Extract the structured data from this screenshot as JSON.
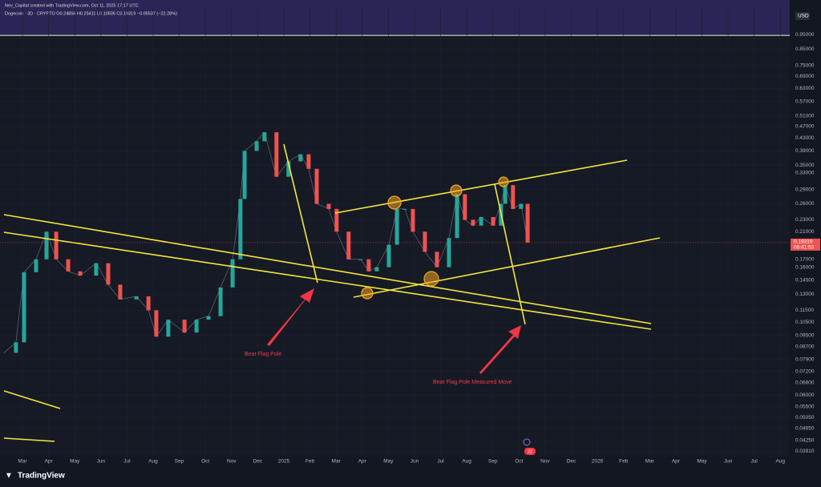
{
  "header": {
    "author_line": "Nev_Capital created with TradingView.com, Oct 11, 2025 17:17 UTC",
    "symbol_line": "Dogecoin · 3D · CRYPTO  O0.24856 H0.25411 L0.10505 C0.19319 −0.05537 (−22.28%)"
  },
  "currency": "USD",
  "chart_data": {
    "type": "price-path",
    "log_scale": true,
    "ylim": [
      0.0375,
      1.18
    ],
    "xlim": [
      -0.86,
      29.36
    ],
    "yticks": [
      {
        "value": 0.95,
        "label": "0.95000"
      },
      {
        "value": 0.85,
        "label": "0.85000"
      },
      {
        "value": 0.75,
        "label": "0.75000"
      },
      {
        "value": 0.69,
        "label": "0.69000"
      },
      {
        "value": 0.63,
        "label": "0.63000"
      },
      {
        "value": 0.57,
        "label": "0.57000"
      },
      {
        "value": 0.51,
        "label": "0.51000"
      },
      {
        "value": 0.47,
        "label": "0.47000"
      },
      {
        "value": 0.43,
        "label": "0.43000"
      },
      {
        "value": 0.39,
        "label": "0.39000"
      },
      {
        "value": 0.35,
        "label": "0.35000"
      },
      {
        "value": 0.33,
        "label": "0.33000"
      },
      {
        "value": 0.29,
        "label": "0.29000"
      },
      {
        "value": 0.26,
        "label": "0.26000"
      },
      {
        "value": 0.23,
        "label": "0.23000"
      },
      {
        "value": 0.21,
        "label": "0.21000"
      },
      {
        "value": 0.17,
        "label": "0.17000"
      },
      {
        "value": 0.16,
        "label": "0.16000"
      },
      {
        "value": 0.145,
        "label": "0.14500"
      },
      {
        "value": 0.13,
        "label": "0.13000"
      },
      {
        "value": 0.115,
        "label": "0.11500"
      },
      {
        "value": 0.105,
        "label": "0.10500"
      },
      {
        "value": 0.095,
        "label": "0.09500"
      },
      {
        "value": 0.087,
        "label": "0.08700"
      },
      {
        "value": 0.079,
        "label": "0.07900"
      },
      {
        "value": 0.072,
        "label": "0.07200"
      },
      {
        "value": 0.066,
        "label": "0.06600"
      },
      {
        "value": 0.06,
        "label": "0.06000"
      },
      {
        "value": 0.055,
        "label": "0.05500"
      },
      {
        "value": 0.0505,
        "label": "0.05050"
      },
      {
        "value": 0.0465,
        "label": "0.04650"
      },
      {
        "value": 0.0425,
        "label": "0.04250"
      },
      {
        "value": 0.0391,
        "label": "0.03910"
      }
    ],
    "xticks": [
      {
        "value": 0,
        "label": "Mar"
      },
      {
        "value": 1,
        "label": "Apr"
      },
      {
        "value": 2,
        "label": "May"
      },
      {
        "value": 3,
        "label": "Jun"
      },
      {
        "value": 4,
        "label": "Jul"
      },
      {
        "value": 5,
        "label": "Aug"
      },
      {
        "value": 6,
        "label": "Sep"
      },
      {
        "value": 7,
        "label": "Oct"
      },
      {
        "value": 8,
        "label": "Nov"
      },
      {
        "value": 9,
        "label": "Dec"
      },
      {
        "value": 10,
        "label": "2025"
      },
      {
        "value": 11,
        "label": "Feb"
      },
      {
        "value": 12,
        "label": "Mar"
      },
      {
        "value": 13,
        "label": "Apr"
      },
      {
        "value": 14,
        "label": "May"
      },
      {
        "value": 15,
        "label": "Jun"
      },
      {
        "value": 16,
        "label": "Jul"
      },
      {
        "value": 17,
        "label": "Aug"
      },
      {
        "value": 18,
        "label": "Sep"
      },
      {
        "value": 19,
        "label": "Oct"
      },
      {
        "value": 20,
        "label": "Nov"
      },
      {
        "value": 21,
        "label": "Dec"
      },
      {
        "value": 22,
        "label": "2026"
      },
      {
        "value": 23,
        "label": "Feb"
      },
      {
        "value": 24,
        "label": "Mar"
      },
      {
        "value": 25,
        "label": "Apr"
      },
      {
        "value": 26,
        "label": "May"
      },
      {
        "value": 27,
        "label": "Jun"
      },
      {
        "value": 28,
        "label": "Jul"
      },
      {
        "value": 29,
        "label": "Aug"
      }
    ],
    "x": [
      -0.71,
      -0.25,
      0.06,
      0.52,
      0.92,
      1.29,
      1.75,
      2.21,
      2.82,
      3.28,
      3.74,
      4.36,
      4.82,
      5.12,
      5.58,
      6.2,
      6.66,
      7.12,
      7.58,
      8.04,
      8.34,
      8.5,
      8.96,
      9.26,
      9.72,
      10.18,
      10.64,
      10.95,
      11.26,
      11.72,
      12.02,
      12.48,
      12.94,
      13.25,
      13.56,
      14.02,
      14.33,
      14.63,
      14.94,
      15.4,
      15.86,
      16.32,
      16.63,
      16.93,
      17.24,
      17.55,
      18.01,
      18.31,
      18.47,
      18.77,
      19.08,
      19.33
    ],
    "values": [
      0.083,
      0.09,
      0.154,
      0.17,
      0.21,
      0.17,
      0.155,
      0.15,
      0.165,
      0.14,
      0.125,
      0.128,
      0.115,
      0.094,
      0.107,
      0.097,
      0.107,
      0.11,
      0.137,
      0.17,
      0.27,
      0.39,
      0.42,
      0.45,
      0.32,
      0.36,
      0.38,
      0.34,
      0.26,
      0.25,
      0.21,
      0.17,
      0.17,
      0.155,
      0.16,
      0.19,
      0.25,
      0.25,
      0.21,
      0.18,
      0.16,
      0.2,
      0.28,
      0.23,
      0.22,
      0.235,
      0.22,
      0.26,
      0.3,
      0.25,
      0.26,
      0.19319
    ],
    "up_color": "#26a69a",
    "down_color": "#ef5350",
    "current_price": {
      "value": 0.19319,
      "label": "0.19319",
      "countdown": "06:41:53"
    }
  },
  "annotations": {
    "pole": "Bear Flag Pole",
    "measured_move": "Bear Flag Pole Measured Move",
    "event_badge": "22"
  },
  "branding": "TradingView"
}
